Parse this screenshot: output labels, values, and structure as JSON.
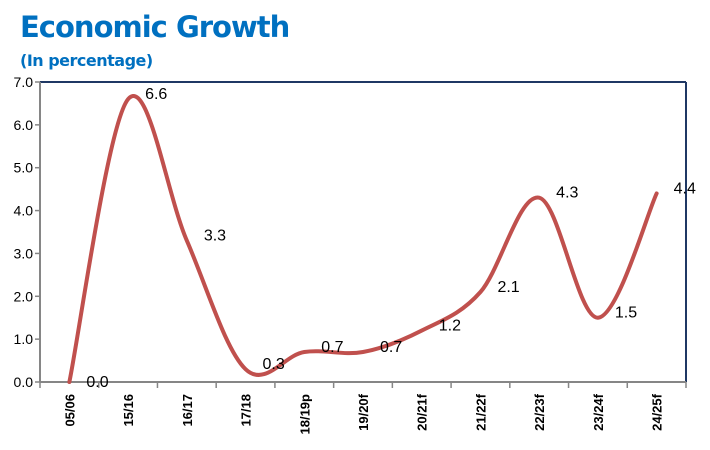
{
  "chart_data": {
    "type": "line",
    "title": "Economic Growth",
    "subtitle": "(In percentage)",
    "xlabel": "",
    "ylabel": "",
    "categories": [
      "05/06",
      "15/16",
      "16/17",
      "17/18",
      "18/19p",
      "19/20f",
      "20/21f",
      "21/22f",
      "22/23f",
      "23/24f",
      "24/25f"
    ],
    "series": [
      {
        "values": [
          0.0,
          6.6,
          3.3,
          0.3,
          0.7,
          0.7,
          1.2,
          2.1,
          4.3,
          1.5,
          4.4
        ],
        "labels": [
          "0.0",
          "6.6",
          "3.3",
          "0.3",
          "0.7",
          "0.7",
          "1.2",
          "2.1",
          "4.3",
          "1.5",
          "4.4"
        ]
      }
    ],
    "ylim": [
      0,
      7
    ],
    "yticks": [
      "0.0",
      "1.0",
      "2.0",
      "3.0",
      "4.0",
      "5.0",
      "6.0",
      "7.0"
    ],
    "grid": false,
    "smooth": true,
    "colors": {
      "line": "#C0504D",
      "title": "#0070C0",
      "frame": "#1F3864"
    }
  }
}
